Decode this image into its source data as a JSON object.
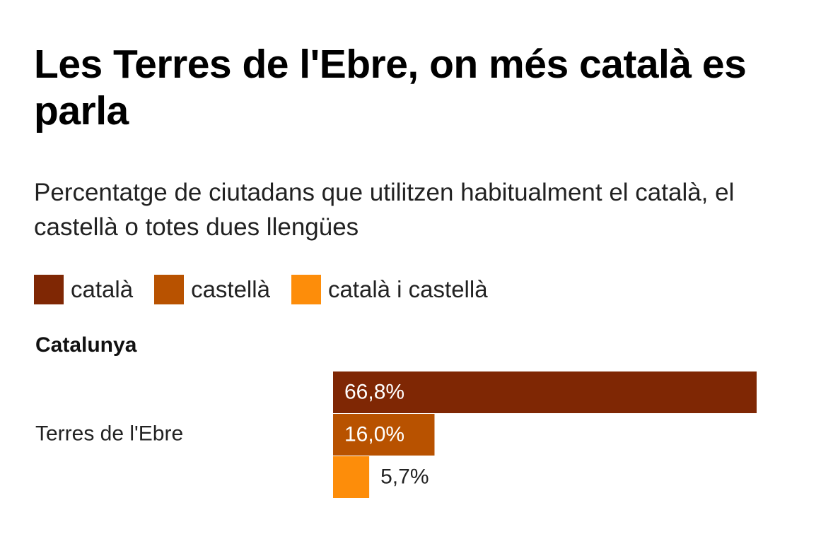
{
  "title": "Les Terres de l'Ebre, on més català es parla",
  "subtitle": "Percentatge de ciutadans que utilitzen habitualment el català, el castellà o totes dues llengües",
  "legend": [
    {
      "label": "català",
      "color": "#7f2704"
    },
    {
      "label": "castellà",
      "color": "#b85200"
    },
    {
      "label": "català i castellà",
      "color": "#fd8d0a"
    }
  ],
  "group_label": "Catalunya",
  "chart_data": {
    "type": "bar",
    "orientation": "horizontal",
    "categories": [
      "Terres de l'Ebre"
    ],
    "series": [
      {
        "name": "català",
        "values": [
          66.8
        ],
        "labels": [
          "66,8%"
        ],
        "color": "#7f2704"
      },
      {
        "name": "castellà",
        "values": [
          16.0
        ],
        "labels": [
          "16,0%"
        ],
        "color": "#b85200"
      },
      {
        "name": "català i castellà",
        "values": [
          5.7
        ],
        "labels": [
          "5,7%"
        ],
        "color": "#fd8d0a"
      }
    ],
    "xlim": [
      0,
      66.8
    ],
    "grid": false,
    "legend_position": "top"
  }
}
